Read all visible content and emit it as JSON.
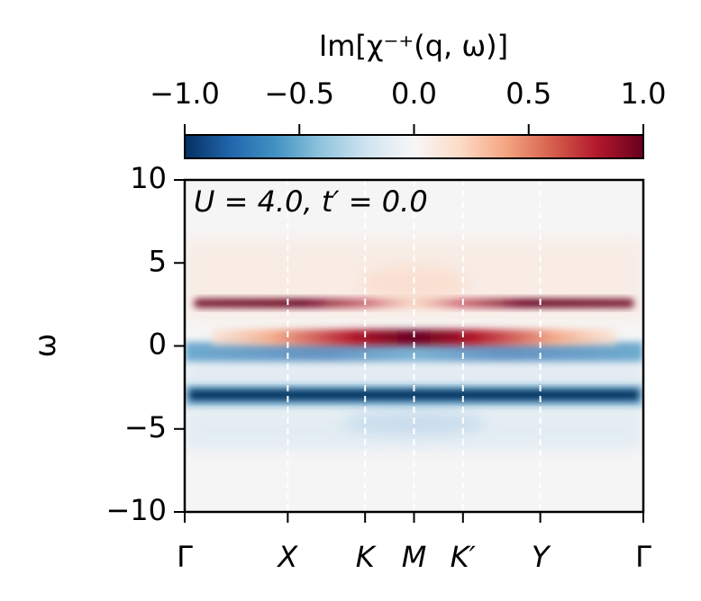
{
  "chart_data": {
    "type": "heatmap",
    "title": "Im[χ⁻⁺(q, ω)]",
    "annotation": "U = 4.0, t′ = 0.0",
    "ylabel": "ω",
    "ylim": [
      -10,
      10
    ],
    "yticks": [
      "10",
      "5",
      "0",
      "−5",
      "−10"
    ],
    "ytick_values": [
      10,
      5,
      0,
      -5,
      -10
    ],
    "xticks": [
      "Γ",
      "X",
      "K",
      "M",
      "K′",
      "Y",
      "Γ"
    ],
    "xtick_positions": [
      0,
      0.2247,
      0.3933,
      0.5,
      0.6067,
      0.7753,
      1.0
    ],
    "dashed_lines_at": [
      0.2247,
      0.3933,
      0.5,
      0.6067,
      0.7753
    ],
    "colorbar": {
      "range": [
        -1.0,
        1.0
      ],
      "ticks": [
        "−1.0",
        "−0.5",
        "0.0",
        "0.5",
        "1.0"
      ],
      "tick_values": [
        -1.0,
        -0.5,
        0.0,
        0.5,
        1.0
      ],
      "colormap": "RdBu_r"
    },
    "bands": [
      {
        "name": "upper",
        "omega_center": 2.5,
        "value": 1.0
      },
      {
        "name": "near-zero positive",
        "omega_center": 0.3,
        "value": 0.8
      },
      {
        "name": "near-zero negative",
        "omega_center": -0.5,
        "value": -0.6
      },
      {
        "name": "lower",
        "omega_center": -3.0,
        "value": -1.0
      }
    ]
  }
}
